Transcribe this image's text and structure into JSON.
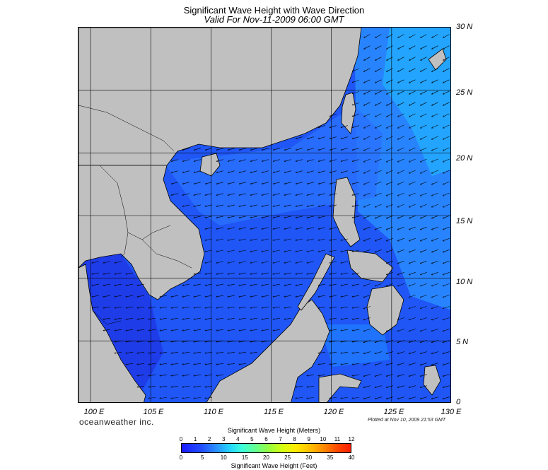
{
  "title": "Significant Wave Height with Wave Direction",
  "subtitle": "Valid For Nov-11-2009 06:00 GMT",
  "lat_labels": [
    "30 N",
    "25 N",
    "20 N",
    "15 N",
    "10 N",
    "5 N",
    "0"
  ],
  "lon_labels": [
    "100 E",
    "105 E",
    "110 E",
    "115 E",
    "120 E",
    "125 E",
    "130 E"
  ],
  "map": {
    "lon_range": [
      99,
      130
    ],
    "lat_range": [
      0,
      30
    ],
    "land_color": "#c0c0c0",
    "ocean_color": "#1f56f5",
    "dominant_wave_direction": "from the northeast toward the southwest"
  },
  "brand": "oceanweather inc.",
  "plotted": "Plotted at Nov 10, 2009 21:53 GMT",
  "colorbar": {
    "title_meters": "Significant Wave Height (Meters)",
    "title_feet": "Significant Wave Height (Feet)",
    "meters": [
      "0",
      "1",
      "2",
      "3",
      "4",
      "5",
      "6",
      "7",
      "8",
      "9",
      "10",
      "11",
      "12"
    ],
    "feet": [
      "0",
      "5",
      "10",
      "15",
      "20",
      "25",
      "30",
      "35",
      "40"
    ],
    "colors": [
      "#1a1aff",
      "#2a8cff",
      "#22d0ff",
      "#3dffd8",
      "#66ff8e",
      "#9aff3c",
      "#d8ff10",
      "#ffe800",
      "#ffbf00",
      "#ff8a00",
      "#ff4a00",
      "#ff1e00"
    ]
  }
}
